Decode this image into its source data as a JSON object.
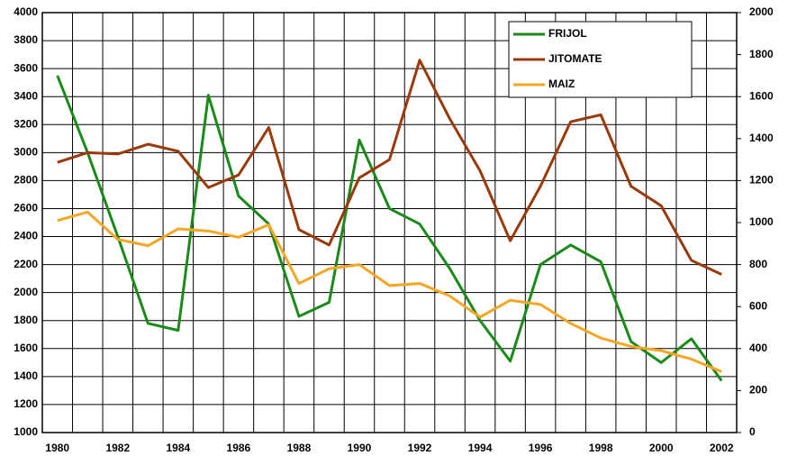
{
  "chart_data": {
    "type": "line",
    "categories": [
      1980,
      null,
      1982,
      null,
      1984,
      null,
      1986,
      null,
      1988,
      null,
      1990,
      null,
      1992,
      null,
      1994,
      null,
      1996,
      null,
      1998,
      null,
      2000,
      null,
      2002
    ],
    "series": [
      {
        "name": "FRIJOL",
        "color": "#1a8a1a",
        "values": [
          3550,
          3000,
          2400,
          1780,
          1730,
          3410,
          2690,
          2490,
          1830,
          1930,
          3090,
          2600,
          2490,
          2170,
          1800,
          1510,
          2200,
          2340,
          2220,
          1650,
          1500,
          1670,
          1370
        ]
      },
      {
        "name": "JITOMATE",
        "color": "#9a3a0a",
        "values": [
          2930,
          3000,
          2990,
          3060,
          3010,
          2750,
          2840,
          3180,
          2450,
          2340,
          2820,
          2950,
          3660,
          3240,
          2870,
          2370,
          2760,
          3220,
          3270,
          2760,
          2620,
          2230,
          2130
        ]
      },
      {
        "name": "MAIZ",
        "color": "#f5a623",
        "axis": "y2",
        "values": [
          1010,
          1050,
          920,
          890,
          970,
          960,
          930,
          990,
          710,
          780,
          800,
          700,
          710,
          650,
          550,
          630,
          610,
          520,
          450,
          410,
          390,
          350,
          290
        ]
      }
    ],
    "ylim": [
      1000,
      4000
    ],
    "yticks": [
      1000,
      1200,
      1400,
      1600,
      1800,
      2000,
      2200,
      2400,
      2600,
      2800,
      3000,
      3200,
      3400,
      3600,
      3800,
      4000
    ],
    "y2lim": [
      0,
      2000
    ],
    "y2ticks": [
      0,
      200,
      400,
      600,
      800,
      1000,
      1200,
      1400,
      1600,
      1800,
      2000
    ],
    "grid": true,
    "legend": "top-right"
  }
}
